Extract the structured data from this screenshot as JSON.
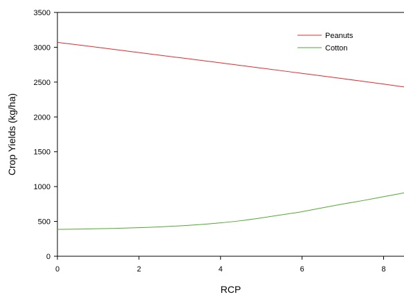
{
  "chart_data": {
    "type": "line",
    "title": "",
    "xlabel": "RCP",
    "ylabel": "Crop Yields (kg/ha)",
    "xlim": [
      0,
      8.5
    ],
    "ylim": [
      0,
      3500
    ],
    "xticks": [
      0,
      2,
      4,
      6,
      8
    ],
    "yticks": [
      0,
      500,
      1000,
      1500,
      2000,
      2500,
      3000,
      3500
    ],
    "grid": false,
    "legend_position": "top-right",
    "series": [
      {
        "name": "Peanuts",
        "color": "#e8262b",
        "x": [
          0,
          1,
          2,
          3,
          4,
          5,
          6,
          7,
          8,
          8.5
        ],
        "y": [
          3070,
          2998,
          2924,
          2850,
          2776,
          2701,
          2625,
          2549,
          2471,
          2430
        ]
      },
      {
        "name": "Cotton",
        "color": "#4daa2e",
        "x": [
          0,
          1,
          2,
          2.8,
          3.5,
          4,
          4.5,
          5,
          5.5,
          6,
          6.5,
          7,
          7.5,
          8,
          8.5
        ],
        "y": [
          385,
          395,
          410,
          430,
          455,
          480,
          510,
          550,
          595,
          640,
          695,
          750,
          800,
          855,
          910
        ]
      }
    ]
  }
}
